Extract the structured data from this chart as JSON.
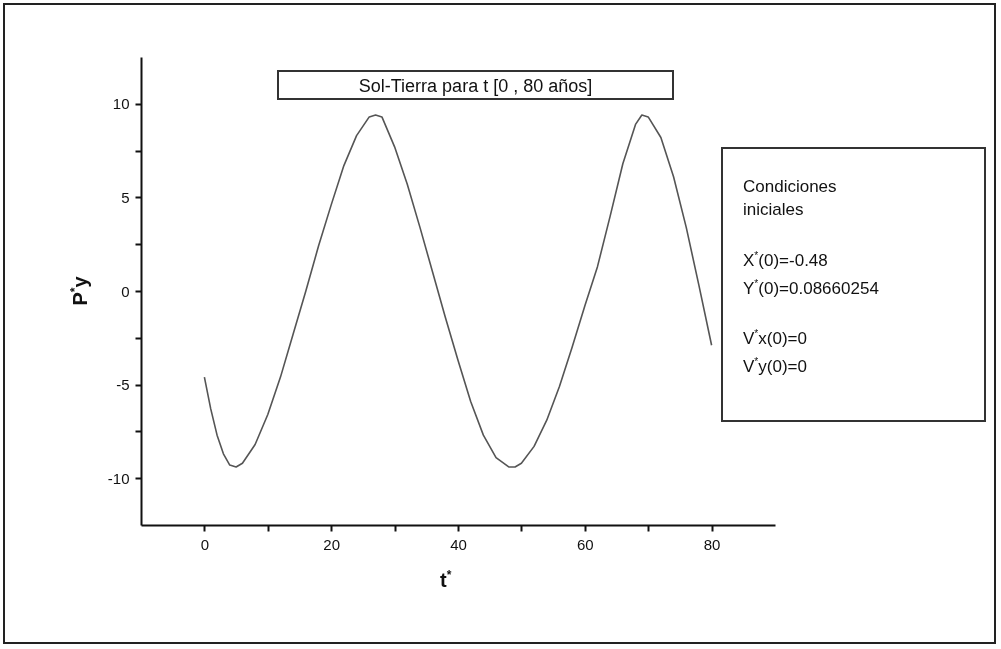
{
  "chart_data": {
    "type": "line",
    "title": "Sol-Tierra para t [0 , 80 años]",
    "xlabel": "t$^{*}$",
    "ylabel": "P$^{*}$y",
    "x": [
      0,
      1,
      2,
      3,
      4,
      5,
      6,
      8,
      10,
      12,
      14,
      16,
      18,
      20,
      22,
      24,
      26,
      27,
      28,
      30,
      32,
      34,
      36,
      38,
      40,
      42,
      44,
      46,
      48,
      49,
      50,
      52,
      54,
      56,
      58,
      60,
      62,
      64,
      66,
      68,
      69,
      70,
      72,
      74,
      76,
      78,
      80
    ],
    "series": [
      {
        "color": "#555555",
        "values": [
          -4.6,
          -6.3,
          -7.7,
          -8.7,
          -9.3,
          -9.4,
          -9.2,
          -8.2,
          -6.6,
          -4.6,
          -2.3,
          0,
          2.4,
          4.6,
          6.7,
          8.3,
          9.3,
          9.4,
          9.3,
          7.7,
          5.7,
          3.4,
          1.0,
          -1.4,
          -3.7,
          -5.9,
          -7.7,
          -8.9,
          -9.4,
          -9.4,
          -9.2,
          -8.3,
          -6.9,
          -5.1,
          -3.0,
          -0.8,
          1.3,
          4.0,
          6.8,
          8.9,
          9.4,
          9.3,
          8.2,
          6.1,
          3.4,
          0.3,
          -2.9
        ]
      }
    ],
    "xlim": [
      -10,
      90
    ],
    "xticks": [
      0,
      {
        "value": 10,
        "label": null
      },
      20,
      {
        "value": 30,
        "label": null
      },
      40,
      {
        "value": 50,
        "label": null
      },
      60,
      {
        "value": 70,
        "label": null
      },
      80
    ],
    "ylim": [
      -12.5,
      12.5
    ],
    "yticks": [
      -10,
      {
        "value": -7.5,
        "label": null
      },
      -5,
      {
        "value": -2.5,
        "label": null
      },
      0,
      {
        "value": 2.5,
        "label": null
      },
      5,
      {
        "value": 7.5,
        "label": null
      },
      10
    ],
    "grid": false,
    "annotations": [
      "Condiciones iniciales",
      "X$^{*}$(0)=-0.48",
      "Y$^{*}$(0)=0.08660254",
      "V$^{*}$x(0)=0",
      "V$^{*}$y(0)=0"
    ]
  }
}
